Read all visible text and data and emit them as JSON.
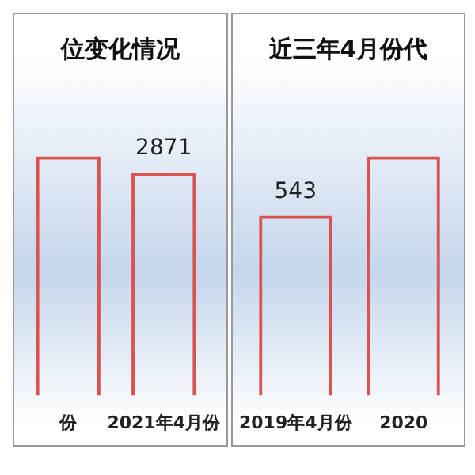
{
  "chart_data": [
    {
      "type": "bar",
      "title": "位变化情况",
      "categories": [
        "份",
        "2021年4月份"
      ],
      "series": [
        {
          "color": "#d9534f",
          "values": [
            3080,
            2871
          ],
          "value_labels": [
            null,
            "2871"
          ]
        }
      ]
    },
    {
      "type": "bar",
      "title": "近三年4月份代",
      "categories": [
        "2019年4月份",
        "2020"
      ],
      "series": [
        {
          "color": "#d9534f",
          "values": [
            543,
            722
          ],
          "value_labels": [
            "543",
            null
          ]
        }
      ]
    }
  ]
}
